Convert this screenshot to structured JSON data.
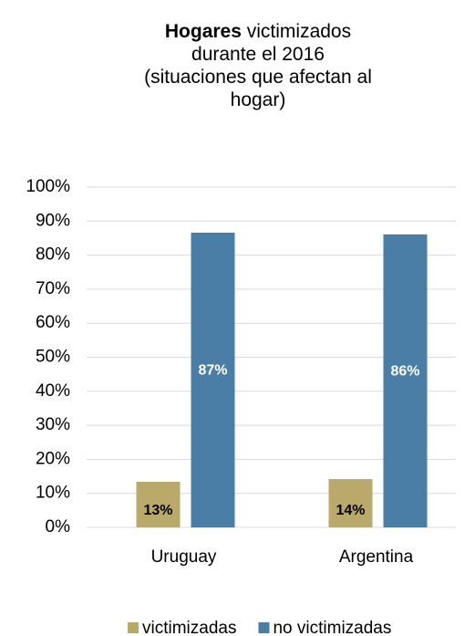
{
  "chart_data": {
    "type": "bar",
    "title_bold": "Hogares",
    "title": "victimizados durante el 2016",
    "subtitle": "(situaciones que afectan al hogar)",
    "categories": [
      "Uruguay",
      "Argentina"
    ],
    "series": [
      {
        "name": "victimizadas",
        "color": "#b9a96b",
        "values": [
          13.4,
          14.2
        ],
        "value_labels": [
          "13%",
          "14%"
        ]
      },
      {
        "name": "no victimizadas",
        "color": "#4a7ea6",
        "values": [
          86.6,
          86.1
        ],
        "value_labels": [
          "87%",
          "86%"
        ]
      }
    ],
    "ylim": [
      0,
      100
    ],
    "yticks": [
      {
        "value": 0,
        "label": "0%"
      },
      {
        "value": 10,
        "label": "10%"
      },
      {
        "value": 20,
        "label": "20%"
      },
      {
        "value": 30,
        "label": "30%"
      },
      {
        "value": 40,
        "label": "40%"
      },
      {
        "value": 50,
        "label": "50%"
      },
      {
        "value": 60,
        "label": "60%"
      },
      {
        "value": 70,
        "label": "70%"
      },
      {
        "value": 80,
        "label": "80%"
      },
      {
        "value": 90,
        "label": "90%"
      },
      {
        "value": 100,
        "label": "100%"
      }
    ],
    "grid": true
  }
}
